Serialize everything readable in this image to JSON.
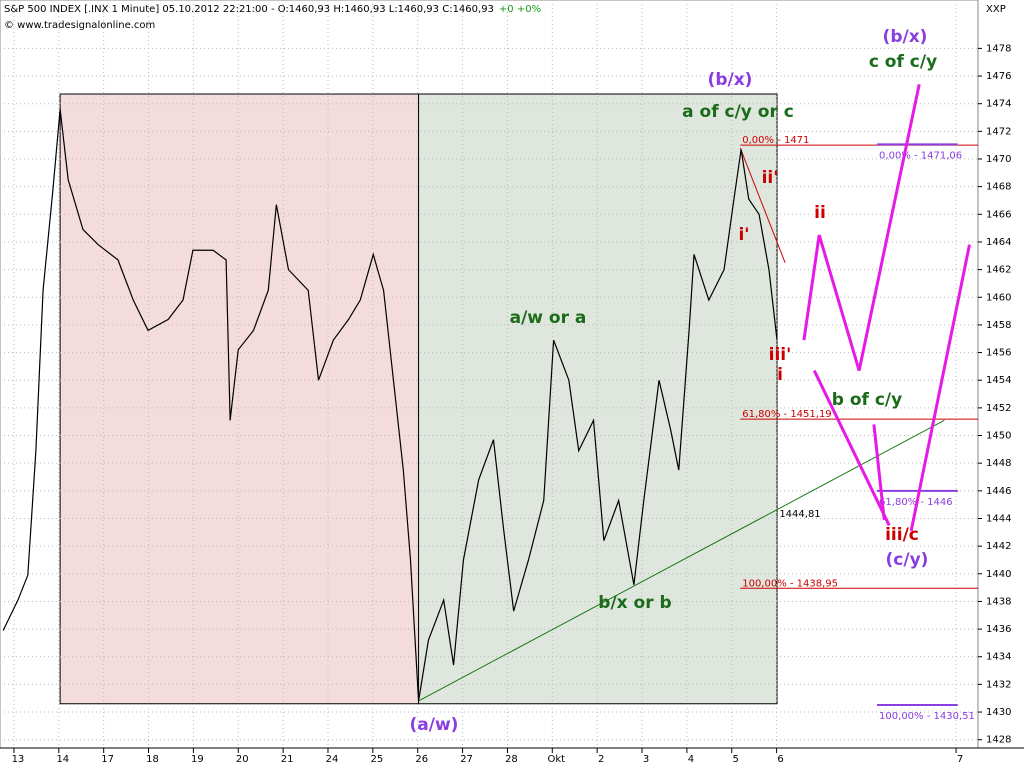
{
  "header": {
    "symbol": "S&P 500 INDEX [.INX  1 Minute] 05.10.2012 22:21:00 - O:1460,93 H:1460,93 L:1460,93 C:1460,93",
    "change": "+0 +0%",
    "copyright": "© www.tradesignalonline.com",
    "axis_name": "XXP"
  },
  "chart_data": {
    "type": "line",
    "xlim": [
      -0.4,
      21.4
    ],
    "ylim": [
      1427.4,
      1481.5
    ],
    "xticks": [
      {
        "value": 0,
        "label": "13"
      },
      {
        "value": 1,
        "label": "14"
      },
      {
        "value": 2,
        "label": "17"
      },
      {
        "value": 3,
        "label": "18"
      },
      {
        "value": 4,
        "label": "19"
      },
      {
        "value": 5,
        "label": "20"
      },
      {
        "value": 6,
        "label": "21"
      },
      {
        "value": 7,
        "label": "24"
      },
      {
        "value": 8,
        "label": "25"
      },
      {
        "value": 9,
        "label": "26"
      },
      {
        "value": 10,
        "label": "27"
      },
      {
        "value": 11,
        "label": "28"
      },
      {
        "value": 12,
        "label": "Okt"
      },
      {
        "value": 13,
        "label": "2"
      },
      {
        "value": 14,
        "label": "3"
      },
      {
        "value": 15,
        "label": "4"
      },
      {
        "value": 16,
        "label": "5"
      },
      {
        "value": 17,
        "label": "6"
      },
      {
        "value": 21,
        "label": "7"
      }
    ],
    "yticks": [
      1428,
      1430,
      1432,
      1434,
      1436,
      1438,
      1440,
      1442,
      1444,
      1446,
      1448,
      1450,
      1452,
      1454,
      1456,
      1458,
      1460,
      1462,
      1464,
      1466,
      1468,
      1470,
      1472,
      1474,
      1476,
      1478
    ],
    "grid": true,
    "series": [
      {
        "color": "#000000",
        "x": [
          -0.33,
          0,
          0.22,
          0.4,
          0.56,
          0.78,
          0.94,
          1.12,
          1.45,
          1.79,
          2.23,
          2.57,
          2.9,
          3.35,
          3.68,
          3.9,
          4.35,
          4.64,
          4.73,
          4.91,
          5.25,
          5.58,
          5.76,
          6.03,
          6.47,
          6.7,
          7.03,
          7.37,
          7.63,
          7.92,
          8.15,
          8.37,
          8.59,
          8.75,
          8.93,
          9.15,
          9.49,
          9.71,
          9.93,
          10.27,
          10.6,
          10.83,
          11.05,
          11.38,
          11.72,
          11.94,
          12.28,
          12.5,
          12.83,
          13.06,
          13.39,
          13.73,
          13.95,
          14.29,
          14.55,
          14.73,
          14.96,
          15.07,
          15.4,
          15.74,
          15.96,
          16.12,
          16.29,
          16.52,
          16.74,
          16.92
        ],
        "values": [
          1435.9,
          1438.1,
          1439.9,
          1448.9,
          1460.5,
          1467.8,
          1473.6,
          1468.5,
          1464.9,
          1463.8,
          1462.7,
          1459.8,
          1457.6,
          1458.4,
          1459.8,
          1463.4,
          1463.4,
          1462.7,
          1451.1,
          1456.2,
          1457.6,
          1460.5,
          1466.7,
          1462,
          1460.5,
          1454,
          1456.9,
          1458.4,
          1459.8,
          1463.1,
          1460.5,
          1454,
          1447.5,
          1441,
          1430.8,
          1435.2,
          1438.1,
          1433.4,
          1441,
          1446.8,
          1449.7,
          1443.1,
          1437.3,
          1441,
          1445.3,
          1456.9,
          1454,
          1448.9,
          1451.1,
          1442.4,
          1445.3,
          1439.2,
          1445.3,
          1454,
          1450.4,
          1447.5,
          1457.6,
          1463.1,
          1459.8,
          1462,
          1467.1,
          1470.7,
          1467.1,
          1466,
          1462,
          1456.9
        ]
      }
    ],
    "zones": [
      {
        "x": [
          0.94,
          8.93
        ],
        "y": [
          1430.6,
          1474.7
        ],
        "color": "#f4dcdc"
      },
      {
        "x": [
          8.93,
          16.92
        ],
        "y": [
          1430.6,
          1474.7
        ],
        "color": "#dfe6dd"
      }
    ],
    "trendlines": [
      {
        "x": [
          8.93,
          20.65
        ],
        "values": [
          1430.8,
          1451.1
        ],
        "color": "#1a7a1a"
      },
      {
        "x": [
          16.1,
          17.1
        ],
        "values": [
          1470.8,
          1462.5
        ],
        "color": "#cc0000"
      }
    ],
    "forecast": [
      {
        "x": [
          17.52,
          17.86,
          18.75,
          20.09
        ],
        "values": [
          1456.9,
          1464.5,
          1454.7,
          1475.4
        ]
      },
      {
        "x": [
          17.75,
          19.42
        ],
        "values": [
          1454.7,
          1443.5
        ]
      },
      {
        "x": [
          19.08,
          19.31
        ],
        "values": [
          1450.8,
          1443.9
        ]
      },
      {
        "x": [
          19.91,
          21.21
        ],
        "values": [
          1443.1,
          1463.8
        ]
      }
    ],
    "forecast_color": "#e619e6",
    "levels": [
      {
        "value": 1471,
        "label": "0,00% - 1471",
        "color": "#cc0000",
        "x": [
          16.1,
          21.4
        ]
      },
      {
        "value": 1451.19,
        "label": "61,80% - 1451,19",
        "color": "#cc0000",
        "x": [
          16.1,
          21.4
        ]
      },
      {
        "value": 1438.95,
        "label": "100,00% - 1438,95",
        "color": "#cc0000",
        "x": [
          16.1,
          21.4
        ]
      },
      {
        "value": 1471.06,
        "label": "0,00% - 1471,06",
        "color": "#8a3de0",
        "x": [
          19.15,
          20.95
        ]
      },
      {
        "value": 1446,
        "label": "61,80% - 1446",
        "color": "#8a3de0",
        "x": [
          19.15,
          20.95
        ]
      },
      {
        "value": 1430.51,
        "label": "100,00% - 1430,51",
        "color": "#8a3de0",
        "x": [
          19.15,
          20.95
        ]
      }
    ],
    "annotations": [
      {
        "text": "(b/x)",
        "color": "#8a3de0"
      },
      {
        "text": "c of c/y",
        "color": "#1a6b1a"
      },
      {
        "text": "(b/x)",
        "color": "#8a3de0"
      },
      {
        "text": "a of c/y or c",
        "color": "#1a6b1a"
      },
      {
        "text": "ii'",
        "color": "#cc0000"
      },
      {
        "text": "ii",
        "color": "#cc0000"
      },
      {
        "text": "i'",
        "color": "#cc0000"
      },
      {
        "text": "iii'",
        "color": "#cc0000"
      },
      {
        "text": "i",
        "color": "#cc0000"
      },
      {
        "text": "a/w or a",
        "color": "#1a6b1a"
      },
      {
        "text": "b of c/y",
        "color": "#1a6b1a"
      },
      {
        "text": "1444,81",
        "color": "#000000"
      },
      {
        "text": "iii/c",
        "color": "#cc0000"
      },
      {
        "text": "(c/y)",
        "color": "#8a3de0"
      },
      {
        "text": "b/x or b",
        "color": "#1a6b1a"
      },
      {
        "text": "(a/w)",
        "color": "#8a3de0"
      }
    ]
  }
}
